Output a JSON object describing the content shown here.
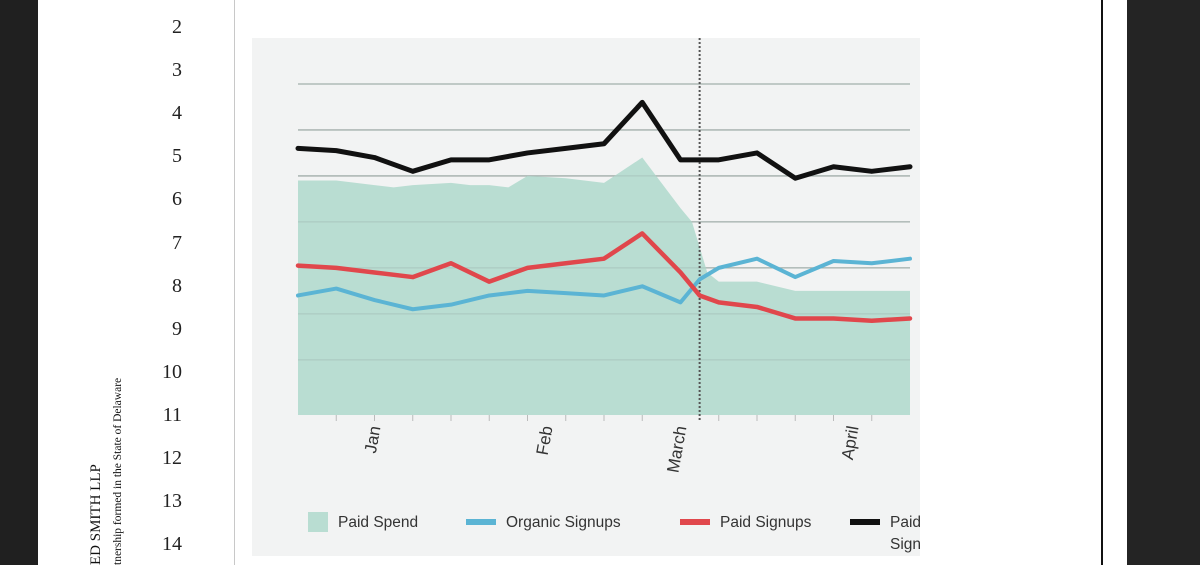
{
  "document": {
    "firm_name": "ED SMITH LLP",
    "firm_subtitle": "tnership formed in the State of Delaware",
    "line_numbers": [
      "2",
      "3",
      "4",
      "5",
      "6",
      "7",
      "8",
      "9",
      "10",
      "11",
      "12",
      "13",
      "14"
    ]
  },
  "colors": {
    "paid_spend": "#b9ddd2",
    "organic": "#5bb4d4",
    "paid": "#e0474c",
    "combined": "#111111",
    "grid": "#a9a9a9",
    "card": "#f2f3f3"
  },
  "chart_data": {
    "type": "line",
    "title": "",
    "xlabel": "",
    "ylabel": "",
    "x_ticks": [
      "Jan",
      "Feb",
      "March",
      "April"
    ],
    "x_tick_positions": [
      2,
      6.5,
      10,
      14.5
    ],
    "event_marker_x": 10.5,
    "xlim": [
      0,
      16
    ],
    "ylim": [
      0,
      8.2
    ],
    "grid": true,
    "gridlines": [
      7.2,
      6.2,
      5.2,
      4.2,
      3.2,
      2.2,
      1.2
    ],
    "legend_position": "bottom",
    "series": [
      {
        "name": "Paid Spend",
        "kind": "area",
        "x": [
          0,
          1,
          2,
          2.5,
          3,
          4,
          4.5,
          5,
          5.5,
          6,
          7,
          8,
          9,
          10,
          10.3,
          10.7,
          11,
          12,
          13,
          14,
          15,
          16
        ],
        "values": [
          5.1,
          5.1,
          5.0,
          4.95,
          5.0,
          5.05,
          5.0,
          5.0,
          4.95,
          5.2,
          5.15,
          5.05,
          5.6,
          4.5,
          4.2,
          3.1,
          2.9,
          2.9,
          2.7,
          2.7,
          2.7,
          2.7
        ]
      },
      {
        "name": "Organic Signups",
        "kind": "line",
        "x": [
          0,
          1,
          2,
          3,
          4,
          5,
          6,
          7,
          8,
          9,
          10,
          10.5,
          11,
          12,
          13,
          14,
          15,
          16
        ],
        "values": [
          2.6,
          2.75,
          2.5,
          2.3,
          2.4,
          2.6,
          2.7,
          2.65,
          2.6,
          2.8,
          2.45,
          2.95,
          3.2,
          3.4,
          3.0,
          3.35,
          3.3,
          3.4
        ],
        "ticks_y": true
      },
      {
        "name": "Paid Signups",
        "kind": "line",
        "x": [
          0,
          1,
          2,
          3,
          4,
          5,
          6,
          7,
          8,
          9,
          10,
          10.5,
          11,
          12,
          13,
          14,
          15,
          16
        ],
        "values": [
          3.25,
          3.2,
          3.1,
          3.0,
          3.3,
          2.9,
          3.2,
          3.3,
          3.4,
          3.95,
          3.1,
          2.6,
          2.45,
          2.35,
          2.1,
          2.1,
          2.05,
          2.1
        ]
      },
      {
        "name": "Paid + Organic Signups",
        "kind": "line",
        "x": [
          0,
          1,
          2,
          3,
          4,
          5,
          6,
          7,
          8,
          9,
          10,
          10.5,
          11,
          12,
          13,
          14,
          15,
          16
        ],
        "values": [
          5.8,
          5.75,
          5.6,
          5.3,
          5.55,
          5.55,
          5.7,
          5.8,
          5.9,
          6.8,
          5.55,
          5.55,
          5.55,
          5.7,
          5.15,
          5.4,
          5.3,
          5.4
        ]
      }
    ],
    "legend": [
      {
        "label_lines": [
          "Paid Spend"
        ],
        "swatch": "box",
        "color_key": "paid_spend"
      },
      {
        "label_lines": [
          "Organic Signups"
        ],
        "swatch": "line",
        "color_key": "organic"
      },
      {
        "label_lines": [
          "Paid Signups"
        ],
        "swatch": "line",
        "color_key": "paid"
      },
      {
        "label_lines": [
          "Paid + Organic",
          "Signups"
        ],
        "swatch": "line",
        "color_key": "combined"
      }
    ]
  }
}
